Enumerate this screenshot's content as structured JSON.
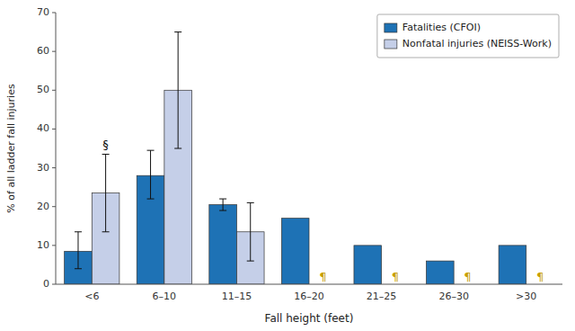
{
  "chart_data": {
    "type": "bar",
    "categories": [
      "<6",
      "6–10",
      "11–15",
      "16–20",
      "21–25",
      "26–30",
      ">30"
    ],
    "series": [
      {
        "name": "Fatalities (CFOI)",
        "color": "#1e72b5",
        "values": [
          8.5,
          28.0,
          20.5,
          17.0,
          10.0,
          6.0,
          10.0
        ],
        "error_low": [
          4.5,
          6.0,
          1.5,
          null,
          null,
          null,
          null
        ],
        "error_high": [
          5.0,
          6.5,
          1.5,
          null,
          null,
          null,
          null
        ]
      },
      {
        "name": "Nonfatal injuries (NEISS-Work)",
        "color": "#c5cfe8",
        "values": [
          23.5,
          50.0,
          13.5,
          null,
          null,
          null,
          null
        ],
        "error_low": [
          10.0,
          15.0,
          7.5,
          null,
          null,
          null,
          null
        ],
        "error_high": [
          10.0,
          15.0,
          7.5,
          null,
          null,
          null,
          null
        ]
      }
    ],
    "xlabel": "Fall height (feet)",
    "ylabel": "% of all ladder fall injuries",
    "ylim": [
      0,
      70
    ],
    "yticks": [
      0,
      10,
      20,
      30,
      40,
      50,
      60,
      70
    ],
    "grid": false,
    "legend": "upper right",
    "annotations": [
      {
        "text": "§",
        "category": "<6",
        "series": "Nonfatal injuries (NEISS-Work)"
      },
      {
        "text": "¶",
        "category": "16–20",
        "series": "Nonfatal injuries (NEISS-Work)",
        "color": "#c8a000"
      },
      {
        "text": "¶",
        "category": "21–25",
        "series": "Nonfatal injuries (NEISS-Work)",
        "color": "#c8a000"
      },
      {
        "text": "¶",
        "category": "26–30",
        "series": "Nonfatal injuries (NEISS-Work)",
        "color": "#c8a000"
      },
      {
        "text": "¶",
        "category": ">30",
        "series": "Nonfatal injuries (NEISS-Work)",
        "color": "#c8a000"
      }
    ]
  }
}
